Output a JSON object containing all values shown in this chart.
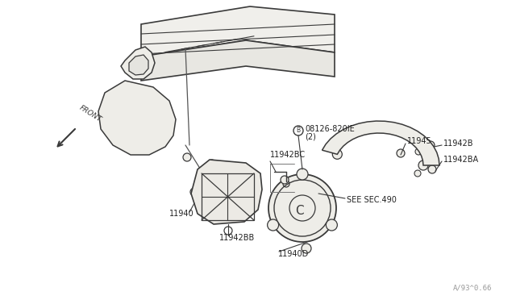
{
  "background_color": "#ffffff",
  "line_color": "#3a3a3a",
  "line_width": 1.0,
  "labels": {
    "front_arrow_text": "FRONT",
    "part_08126": "08126-820IE\n  (2)",
    "part_11940": "11940",
    "part_11940D": "11940D",
    "part_11942BB": "11942BB",
    "part_11942BC": "11942BC",
    "part_11942B": "11942B",
    "part_11942BA": "11942BA",
    "part_11945": "11945",
    "see_sec": "SEE SEC.490"
  },
  "watermark": "A/93^0.66",
  "font_size_label": 7.0,
  "font_size_watermark": 6.5
}
